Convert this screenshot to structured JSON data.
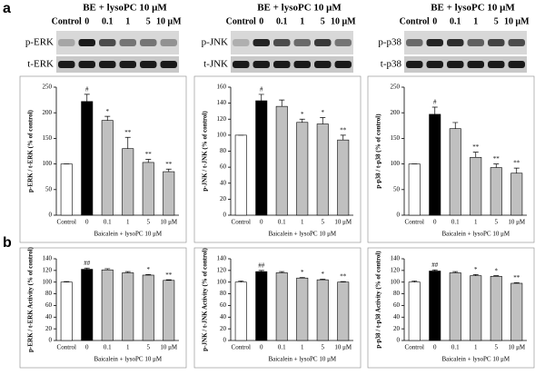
{
  "figure": {
    "panel_labels": [
      "a",
      "b"
    ],
    "blots": [
      {
        "header": "BE + lysoPC 10 μM",
        "lanes": [
          "Control",
          "0",
          "0.1",
          "1",
          "5",
          "10 μM"
        ],
        "rows": [
          "p-ERK",
          "t-ERK"
        ]
      },
      {
        "header": "BE + lysoPC 10 μM",
        "lanes": [
          "Control",
          "0",
          "0.1",
          "1",
          "5",
          "10 μM"
        ],
        "rows": [
          "p-JNK",
          "t-JNK"
        ]
      },
      {
        "header": "BE + lysoPC 10 μM",
        "lanes": [
          "Control",
          "0",
          "0.1",
          "1",
          "5",
          "10 μM"
        ],
        "rows": [
          "p-p38",
          "t-p38"
        ]
      }
    ]
  },
  "chart_data": [
    {
      "type": "bar",
      "ylabel": "p-ERK / t-ERK (% of control)",
      "xlabel": "Baicalein + lysoPC 10 μM",
      "categories": [
        "Control",
        "0",
        "0.1",
        "1",
        "5",
        "10 μM"
      ],
      "values": [
        100,
        222,
        185,
        130,
        103,
        85
      ],
      "errors": [
        0,
        14,
        8,
        22,
        6,
        5
      ],
      "colors": [
        "#ffffff",
        "#000000",
        "#c0c0c0",
        "#c0c0c0",
        "#c0c0c0",
        "#c0c0c0"
      ],
      "annotations": [
        null,
        "#",
        "*",
        "**",
        "**",
        "**"
      ],
      "ylim": [
        0,
        250
      ],
      "yticks": [
        0,
        50,
        100,
        150,
        200,
        250
      ]
    },
    {
      "type": "bar",
      "ylabel": "p-JNK / t-JNK (% of control)",
      "xlabel": "Baicalein + lysoPC 10 μM",
      "categories": [
        "Control",
        "0",
        "0.1",
        "1",
        "5",
        "10 μM"
      ],
      "values": [
        100,
        143,
        136,
        116,
        114,
        94
      ],
      "errors": [
        0,
        8,
        8,
        4,
        8,
        6
      ],
      "colors": [
        "#ffffff",
        "#000000",
        "#c0c0c0",
        "#c0c0c0",
        "#c0c0c0",
        "#c0c0c0"
      ],
      "annotations": [
        null,
        "#",
        null,
        "*",
        "*",
        "**"
      ],
      "ylim": [
        0,
        160
      ],
      "yticks": [
        0,
        20,
        40,
        60,
        80,
        100,
        120,
        140,
        160
      ]
    },
    {
      "type": "bar",
      "ylabel": "p-p38 / t-p38 (% of control)",
      "xlabel": "Baicalein + lysoPC 10 μM",
      "categories": [
        "Control",
        "0",
        "0.1",
        "1",
        "5",
        "10 μM"
      ],
      "values": [
        100,
        197,
        169,
        113,
        93,
        82
      ],
      "errors": [
        0,
        14,
        12,
        10,
        7,
        10
      ],
      "colors": [
        "#ffffff",
        "#000000",
        "#c0c0c0",
        "#c0c0c0",
        "#c0c0c0",
        "#c0c0c0"
      ],
      "annotations": [
        null,
        "#",
        null,
        "**",
        "**",
        "**"
      ],
      "ylim": [
        0,
        250
      ],
      "yticks": [
        0,
        50,
        100,
        150,
        200,
        250
      ]
    },
    {
      "type": "bar",
      "ylabel": "p-ERK / t-ERK Activity (% of control)",
      "xlabel": "Baicalein + lysoPC 10 μM",
      "categories": [
        "Control",
        "0",
        "0.1",
        "1",
        "5",
        "10 μM"
      ],
      "values": [
        100,
        122,
        121,
        116,
        112,
        103
      ],
      "errors": [
        1,
        2,
        2,
        2,
        1,
        1
      ],
      "colors": [
        "#ffffff",
        "#000000",
        "#c0c0c0",
        "#c0c0c0",
        "#c0c0c0",
        "#c0c0c0"
      ],
      "annotations": [
        null,
        "##",
        null,
        null,
        "*",
        "**"
      ],
      "ylim": [
        0,
        140
      ],
      "yticks": [
        0,
        20,
        40,
        60,
        80,
        100,
        120,
        140
      ]
    },
    {
      "type": "bar",
      "ylabel": "p-JNK / t-JNK Activity (% of control)",
      "xlabel": "Baicalein + lysoPC 10 μM",
      "categories": [
        "Control",
        "0",
        "0.1",
        "1",
        "5",
        "10 μM"
      ],
      "values": [
        100,
        118,
        116,
        107,
        104,
        100
      ],
      "errors": [
        2,
        2,
        2,
        1,
        1,
        1
      ],
      "colors": [
        "#ffffff",
        "#000000",
        "#c0c0c0",
        "#c0c0c0",
        "#c0c0c0",
        "#c0c0c0"
      ],
      "annotations": [
        null,
        "##",
        null,
        "*",
        "*",
        "**"
      ],
      "ylim": [
        0,
        140
      ],
      "yticks": [
        0,
        20,
        40,
        60,
        80,
        100,
        120,
        140
      ]
    },
    {
      "type": "bar",
      "ylabel": "p-p38 / t-p38 Activity (% of control)",
      "xlabel": "Baicalein + lysoPC 10 μM",
      "categories": [
        "Control",
        "0",
        "0.1",
        "1",
        "5",
        "10 μM"
      ],
      "values": [
        100,
        119,
        116,
        111,
        110,
        98
      ],
      "errors": [
        2,
        2,
        2,
        2,
        1,
        1
      ],
      "colors": [
        "#ffffff",
        "#000000",
        "#c0c0c0",
        "#c0c0c0",
        "#c0c0c0",
        "#c0c0c0"
      ],
      "annotations": [
        null,
        "##",
        null,
        "*",
        "*",
        "**"
      ],
      "ylim": [
        0,
        140
      ],
      "yticks": [
        0,
        20,
        40,
        60,
        80,
        100,
        120,
        140
      ]
    }
  ]
}
